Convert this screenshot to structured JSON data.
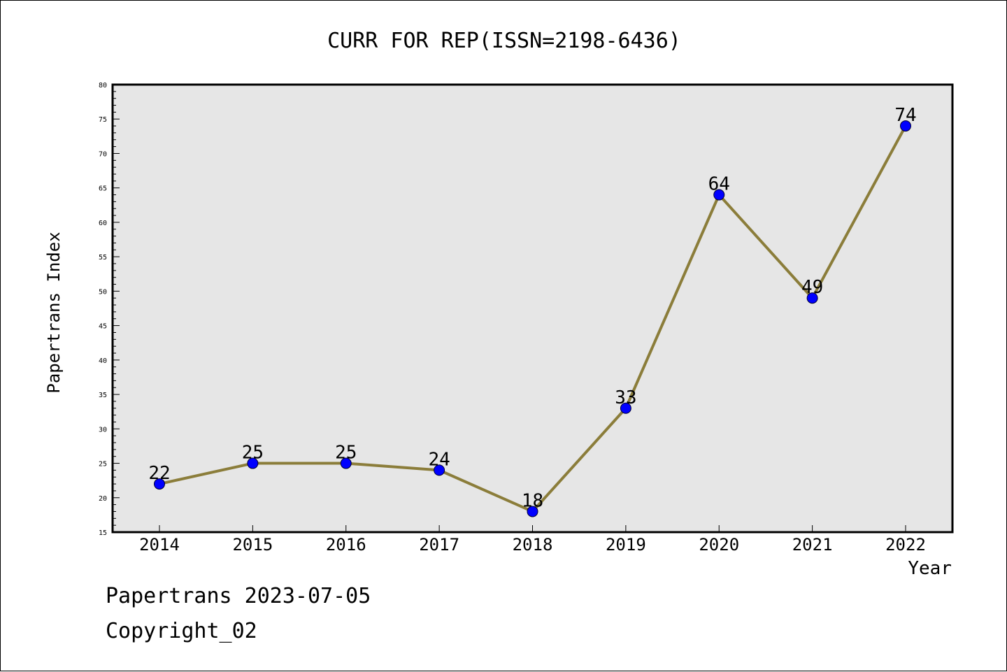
{
  "chart_data": {
    "type": "line",
    "title": "CURR FOR REP(ISSN=2198-6436)",
    "xlabel": "Year",
    "ylabel": "Papertrans Index",
    "categories": [
      "2014",
      "2015",
      "2016",
      "2017",
      "2018",
      "2019",
      "2020",
      "2021",
      "2022"
    ],
    "series": [
      {
        "values": [
          22,
          25,
          25,
          24,
          18,
          33,
          64,
          49,
          74
        ]
      }
    ],
    "ylim": [
      15,
      80
    ],
    "yticks": [
      "15",
      "20",
      "25",
      "30",
      "35",
      "40",
      "45",
      "50",
      "55",
      "60",
      "65",
      "70",
      "75",
      "80"
    ],
    "data_labels": [
      "22",
      "25",
      "25",
      "24",
      "18",
      "33",
      "64",
      "49",
      "74"
    ],
    "grid": false,
    "colors": {
      "plot_background": "#e6e6e6",
      "line": "#8b7d3a",
      "marker": "#0000ff"
    }
  },
  "footer": {
    "line1": "Papertrans 2023-07-05",
    "line2": "Copyright_02"
  }
}
